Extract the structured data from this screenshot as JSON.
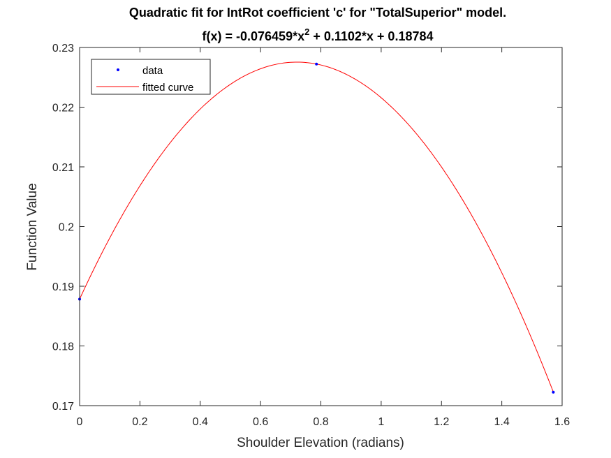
{
  "chart_data": {
    "type": "line",
    "title_line1": "Quadratic fit for IntRot coefficient 'c' for \"TotalSuperior\" model.",
    "title_line2_pre": "f(x) = -0.076459*x",
    "title_line2_sup": "2",
    "title_line2_post": " + 0.1102*x + 0.18784",
    "xlabel": "Shoulder Elevation (radians)",
    "ylabel": "Function Value",
    "xlim": [
      0,
      1.6
    ],
    "ylim": [
      0.17,
      0.23
    ],
    "xticks": [
      "0",
      "0.2",
      "0.4",
      "0.6",
      "0.8",
      "1",
      "1.2",
      "1.4",
      "1.6"
    ],
    "yticks": [
      "0.17",
      "0.18",
      "0.19",
      "0.2",
      "0.21",
      "0.22",
      "0.23"
    ],
    "legend_position": "top-left",
    "series": [
      {
        "name": "data",
        "style": "points",
        "color": "#0000ff",
        "x": [
          0,
          0.7854,
          1.5708
        ],
        "y": [
          0.18784,
          0.22722,
          0.17225
        ]
      },
      {
        "name": "fitted curve",
        "style": "line",
        "color": "#ff0000",
        "coefficients": {
          "a": -0.076459,
          "b": 0.1102,
          "c": 0.18784
        },
        "x_range": [
          0,
          1.5708
        ]
      }
    ]
  }
}
